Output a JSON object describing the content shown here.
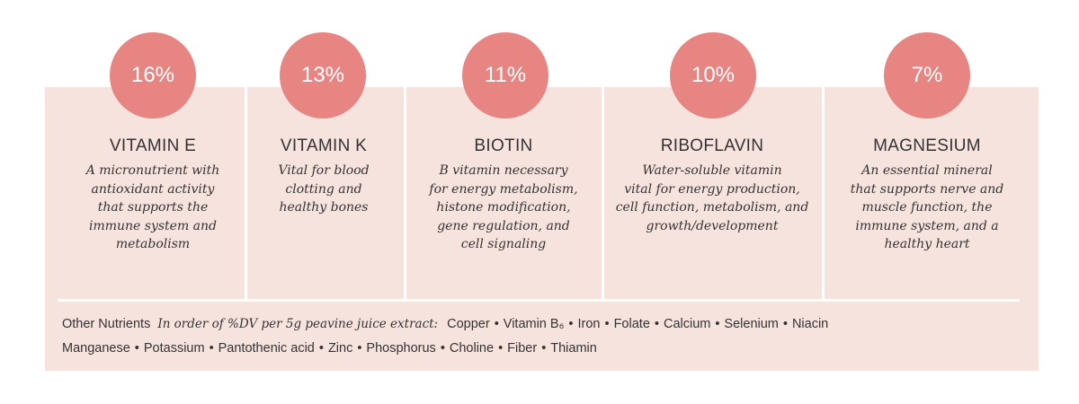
{
  "nutrients": [
    {
      "percent": "16%",
      "name": "VITAMIN E",
      "desc": [
        "A micronutrient with",
        "antioxidant activity",
        "that supports the",
        "immune system and",
        "metabolism"
      ]
    },
    {
      "percent": "13%",
      "name": "VITAMIN K",
      "desc": [
        "Vital for blood",
        "clotting and",
        "healthy bones"
      ]
    },
    {
      "percent": "11%",
      "name": "BIOTIN",
      "desc": [
        "B vitamin necessary",
        "for energy metabolism,",
        "histone modification,",
        "gene regulation, and",
        "cell signaling"
      ]
    },
    {
      "percent": "10%",
      "name": "RIBOFLAVIN",
      "desc": [
        "Water-soluble vitamin",
        "vital for energy production,",
        "cell function, metabolism, and",
        "growth/development"
      ]
    },
    {
      "percent": "7%",
      "name": "MAGNESIUM",
      "desc": [
        "An essential mineral",
        "that supports nerve and",
        "muscle function, the",
        "immune system, and a",
        "healthy heart"
      ]
    }
  ],
  "other": {
    "label": "Other Nutrients",
    "subtitle": "In order of %DV per 5g peavine juice extract:",
    "line1": [
      "Copper",
      "Vitamin B₆",
      "Iron",
      "Folate",
      "Calcium",
      "Selenium",
      "Niacin"
    ],
    "line2": [
      "Manganese",
      "Potassium",
      "Pantothenic acid",
      "Zinc",
      "Phosphorus",
      "Choline",
      "Fiber",
      "Thiamin"
    ]
  },
  "colors": {
    "panel": "#f7e3de",
    "badge": "#e68582",
    "text": "#333333"
  }
}
